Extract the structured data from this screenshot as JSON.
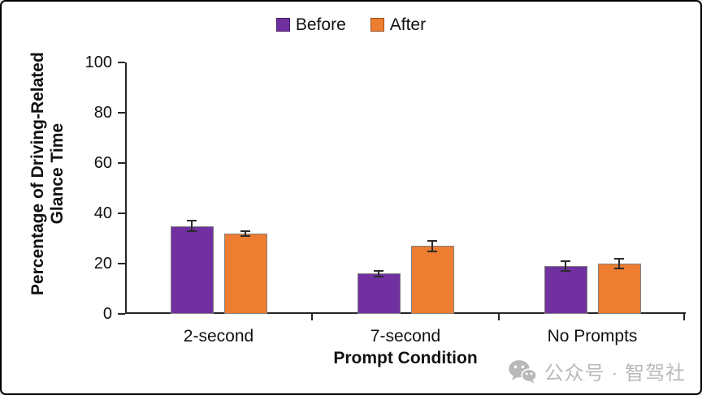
{
  "figure": {
    "background": "#ffffff",
    "border_color": "#000000"
  },
  "legend": {
    "items": [
      {
        "label": "Before",
        "color": "#7030A0"
      },
      {
        "label": "After",
        "color": "#ED7D31"
      }
    ]
  },
  "chart_data": {
    "type": "bar",
    "title": "",
    "categories": [
      "2-second",
      "7-second",
      "No Prompts"
    ],
    "series": [
      {
        "name": "Before",
        "color": "#7030A0",
        "values": [
          35,
          16,
          19
        ],
        "errors": [
          2,
          1,
          2
        ]
      },
      {
        "name": "After",
        "color": "#ED7D31",
        "values": [
          32,
          27,
          20
        ],
        "errors": [
          1,
          2,
          2
        ]
      }
    ],
    "xlabel": "Prompt Condition",
    "ylabel": "Percentage of Driving-Related Glance Time",
    "ylabel_lines": [
      "Percentage of Driving-Related",
      "Glance Time"
    ],
    "ylim": [
      0,
      100
    ],
    "yticks": [
      0,
      20,
      40,
      60,
      80,
      100
    ],
    "grid": false,
    "legend_position": "top-center",
    "bar_border_color": "#808080",
    "error_bar_color": "#2b2b2b",
    "axis_color": "#262626"
  },
  "watermark": {
    "icon": "wechat-icon",
    "text": "公众号 · 智驾社",
    "color": "#b9b9b9"
  }
}
